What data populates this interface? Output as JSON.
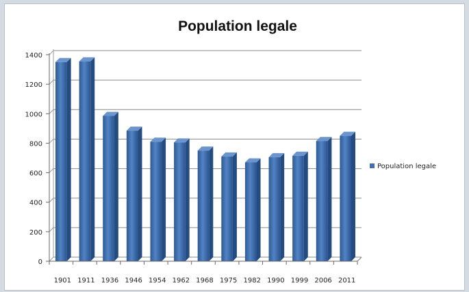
{
  "chart_data": {
    "type": "bar",
    "title": "Population legale",
    "categories": [
      "1901",
      "1911",
      "1936",
      "1946",
      "1954",
      "1962",
      "1968",
      "1975",
      "1982",
      "1990",
      "1999",
      "2006",
      "2011"
    ],
    "series": [
      {
        "name": "Population legale",
        "values": [
          1350,
          1355,
          985,
          885,
          810,
          805,
          750,
          710,
          670,
          705,
          715,
          815,
          850
        ]
      }
    ],
    "ylim": [
      0,
      1400
    ],
    "yticks": [
      0,
      200,
      400,
      600,
      800,
      1000,
      1200,
      1400
    ],
    "grid": true,
    "legend_position": "right",
    "bar_color": "#3f6fad"
  }
}
